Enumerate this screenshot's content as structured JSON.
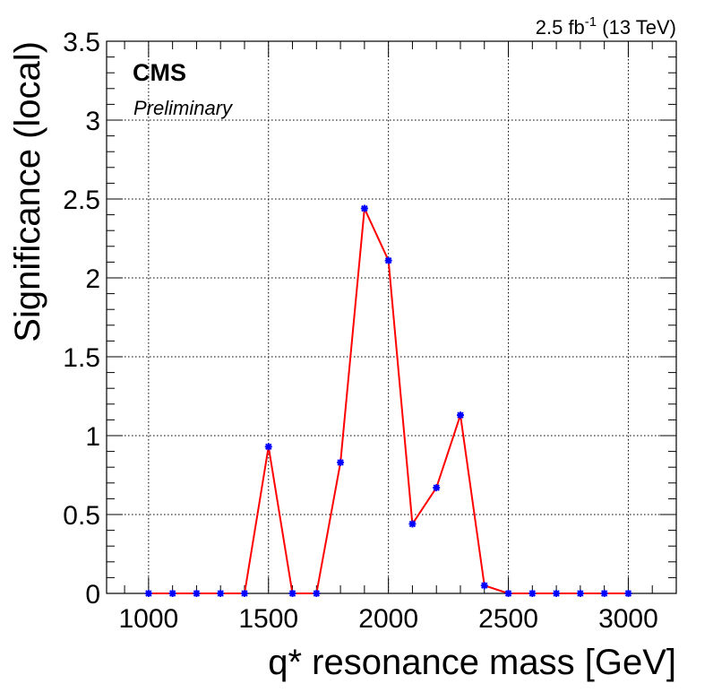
{
  "chart_data": {
    "type": "line",
    "xlabel": "q* resonance mass [GeV]",
    "ylabel": "Significance (local)",
    "xlim": [
      825,
      3200
    ],
    "ylim": [
      0,
      3.5
    ],
    "xticks": [
      1000,
      1500,
      2000,
      2500,
      3000
    ],
    "yticks": [
      0,
      0.5,
      1,
      1.5,
      2,
      2.5,
      3,
      3.5
    ],
    "x_tick_labels": [
      "1000",
      "1500",
      "2000",
      "2500",
      "3000"
    ],
    "y_tick_labels": [
      "0",
      "0.5",
      "1",
      "1.5",
      "2",
      "2.5",
      "3",
      "3.5"
    ],
    "grid": true,
    "series": [
      {
        "line_color": "#ff0000",
        "marker_color": "#0000ff",
        "x": [
          1000,
          1100,
          1200,
          1300,
          1400,
          1500,
          1600,
          1700,
          1800,
          1900,
          2000,
          2100,
          2200,
          2300,
          2400,
          2500,
          2600,
          2700,
          2800,
          2900,
          3000
        ],
        "y": [
          0,
          0,
          0,
          0,
          0,
          0.93,
          0,
          0,
          0.83,
          2.44,
          2.11,
          0.44,
          0.67,
          1.13,
          0.05,
          0,
          0,
          0,
          0,
          0,
          0
        ]
      }
    ]
  },
  "labels": {
    "cms": "CMS",
    "preliminary": "Preliminary",
    "lumi_value": "2.5 fb",
    "lumi_exponent": "-1",
    "lumi_energy": " (13 TeV)"
  }
}
